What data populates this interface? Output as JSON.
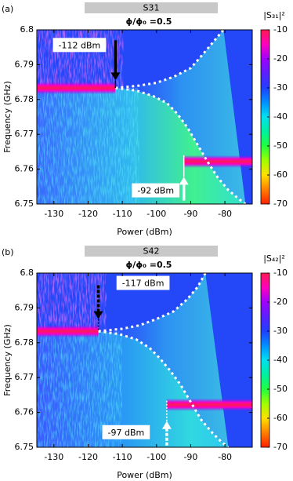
{
  "chart_data": [
    {
      "type": "heatmap",
      "panel_label": "(a)",
      "title": "S31",
      "subtitle": "ϕ/ϕ₀ =0.5",
      "xlabel": "Power (dBm)",
      "ylabel": "Frequency (GHz)",
      "xlim": [
        -135,
        -72
      ],
      "xticks": [
        -130,
        -120,
        -110,
        -100,
        -90,
        -80
      ],
      "ylim": [
        6.75,
        6.8
      ],
      "yticks": [
        6.75,
        6.76,
        6.77,
        6.78,
        6.79,
        6.8
      ],
      "colorbar": {
        "label": "|S₃₁|²",
        "clim": [
          -70,
          -10
        ],
        "ticks": [
          -10,
          -20,
          -30,
          -40,
          -50,
          -60,
          -70
        ],
        "colormap": [
          "#ff1a50",
          "#ff00c0",
          "#a000ff",
          "#5a20ff",
          "#2040ff",
          "#0090ff",
          "#00e0f0",
          "#00f0a0",
          "#20ff40",
          "#a0ff00",
          "#ffe000",
          "#ff8000",
          "#ff2000"
        ]
      },
      "bands": [
        {
          "x": [
            -135,
            -112
          ],
          "y": 6.7833
        },
        {
          "x": [
            -92,
            -72
          ],
          "y": 6.7622
        }
      ],
      "curves": [
        {
          "x": [
            -112,
            -105,
            -100,
            -95,
            -90,
            -86,
            -83,
            -80.4
          ],
          "y": [
            6.7833,
            6.784,
            6.7848,
            6.7865,
            6.789,
            6.7935,
            6.797,
            6.8
          ]
        },
        {
          "x": [
            -112,
            -106,
            -101,
            -97,
            -94,
            -91,
            -88,
            -85,
            -82,
            -79,
            -76,
            -74
          ],
          "y": [
            6.7833,
            6.7826,
            6.781,
            6.779,
            6.776,
            6.772,
            6.767,
            6.762,
            6.7575,
            6.754,
            6.7515,
            6.75
          ]
        }
      ],
      "annotations": [
        {
          "text": "-112 dBm",
          "x": -112,
          "y": [
            6.797,
            6.7855,
            6.7833
          ],
          "color": "#000000",
          "dashed": false
        },
        {
          "text": "-92 dBm",
          "x": -92,
          "y": [
            6.751,
            6.7578,
            6.764
          ],
          "color": "#ffffff",
          "dashed": false
        }
      ]
    },
    {
      "type": "heatmap",
      "panel_label": "(b)",
      "title": "S42",
      "subtitle": "ϕ/ϕ₀ =0.5",
      "xlabel": "Power (dBm)",
      "ylabel": "Frequency (GHz)",
      "xlim": [
        -135,
        -72
      ],
      "xticks": [
        -130,
        -120,
        -110,
        -100,
        -90,
        -80
      ],
      "ylim": [
        6.75,
        6.8
      ],
      "yticks": [
        6.75,
        6.76,
        6.77,
        6.78,
        6.79,
        6.8
      ],
      "colorbar": {
        "label": "|S₄₂|²",
        "clim": [
          -70,
          -10
        ],
        "ticks": [
          -10,
          -20,
          -30,
          -40,
          -50,
          -60,
          -70
        ],
        "colormap": [
          "#ff1a50",
          "#ff00c0",
          "#a000ff",
          "#5a20ff",
          "#2040ff",
          "#0090ff",
          "#00e0f0",
          "#00f0a0",
          "#20ff40",
          "#a0ff00",
          "#ffe000",
          "#ff8000",
          "#ff2000"
        ]
      },
      "bands": [
        {
          "x": [
            -135,
            -117
          ],
          "y": 6.7833
        },
        {
          "x": [
            -97,
            -72
          ],
          "y": 6.7622
        }
      ],
      "curves": [
        {
          "x": [
            -117,
            -110,
            -105,
            -100,
            -95,
            -91,
            -88,
            -85.7
          ],
          "y": [
            6.7833,
            6.784,
            6.785,
            6.7868,
            6.789,
            6.7925,
            6.796,
            6.8
          ]
        },
        {
          "x": [
            -117,
            -111,
            -106,
            -102,
            -99,
            -96,
            -93,
            -90,
            -87,
            -84,
            -81,
            -79
          ],
          "y": [
            6.7833,
            6.7825,
            6.781,
            6.7785,
            6.7755,
            6.772,
            6.768,
            6.763,
            6.758,
            6.7545,
            6.7515,
            6.75
          ]
        }
      ],
      "annotations": [
        {
          "text": "-117 dBm",
          "x": -117,
          "y": [
            6.7965,
            6.7868,
            6.7833
          ],
          "color": "#000000",
          "dashed": true
        },
        {
          "text": "-97 dBm",
          "x": -97,
          "y": [
            6.7505,
            6.7575,
            6.7635
          ],
          "color": "#ffffff",
          "dashed": true
        }
      ]
    }
  ]
}
